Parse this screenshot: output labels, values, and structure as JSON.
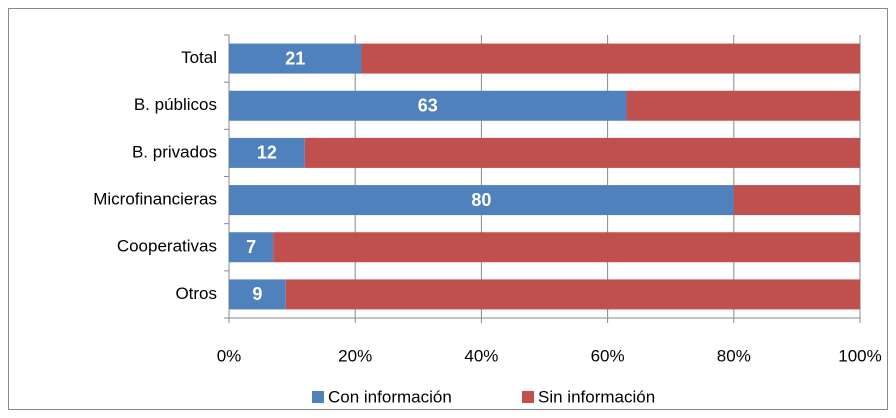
{
  "chart_data": {
    "type": "hbar_stacked",
    "categories": [
      "Total",
      "B. públicos",
      "B. privados",
      "Microfinancieras",
      "Cooperativas",
      "Otros"
    ],
    "series": [
      {
        "name": "Con información",
        "color": "#4f81bd",
        "values": [
          21,
          63,
          12,
          80,
          7,
          9
        ],
        "show_labels": true
      },
      {
        "name": "Sin información",
        "color": "#c0504d",
        "values": [
          79,
          37,
          88,
          20,
          93,
          91
        ],
        "show_labels": false
      }
    ],
    "xlim": [
      0,
      100
    ],
    "xticks": [
      {
        "value": 0,
        "label": "0%"
      },
      {
        "value": 20,
        "label": "20%"
      },
      {
        "value": 40,
        "label": "40%"
      },
      {
        "value": 60,
        "label": "60%"
      },
      {
        "value": 80,
        "label": "80%"
      },
      {
        "value": 100,
        "label": "100%"
      }
    ],
    "grid": true,
    "legend": "bottom"
  }
}
